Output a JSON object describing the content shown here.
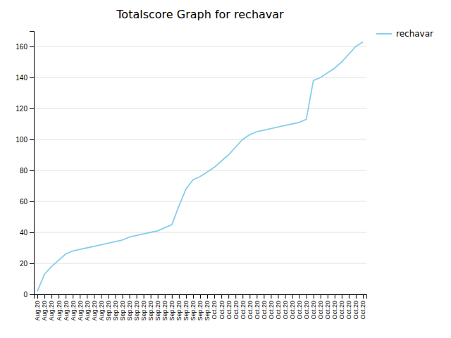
{
  "chart_data": {
    "type": "line",
    "title": "Totalscore Graph for rechavar",
    "categories": [
      "Aug.20",
      "Aug.20",
      "Aug.20",
      "Aug.20",
      "Aug.20",
      "Aug.20",
      "Aug.20",
      "Aug.20",
      "Aug.20",
      "Aug.20",
      "Sep.20",
      "Sep.20",
      "Sep.20",
      "Sep.20",
      "Sep.20",
      "Sep.20",
      "Sep.20",
      "Sep.20",
      "Sep.20",
      "Sep.20",
      "Sep.20",
      "Sep.20",
      "Sep.20",
      "Sep.20",
      "Sep.20",
      "Oct.20",
      "Oct.20",
      "Oct.20",
      "Oct.20",
      "Oct.20",
      "Oct.20",
      "Oct.20",
      "Oct.20",
      "Oct.20",
      "Oct.20",
      "Oct.20",
      "Oct.20",
      "Oct.20",
      "Oct.20",
      "Oct.20",
      "Oct.20",
      "Oct.20",
      "Oct.20",
      "Oct.20",
      "Oct.20",
      "Oct.20",
      "Oct.20"
    ],
    "series": [
      {
        "name": "rechavar",
        "color": "#87CEEB",
        "values": [
          2,
          13,
          18,
          22,
          26,
          28,
          29,
          30,
          31,
          32,
          33,
          34,
          35,
          37,
          38,
          39,
          40,
          41,
          43,
          45,
          57,
          68,
          74,
          76,
          79,
          82,
          86,
          90,
          95,
          100,
          103,
          105,
          106,
          107,
          108,
          109,
          110,
          111,
          113,
          138,
          140,
          143,
          146,
          150,
          155,
          160,
          163
        ]
      }
    ],
    "ylim": [
      0,
      170
    ],
    "yticks": [
      0,
      20,
      40,
      60,
      80,
      100,
      120,
      140,
      160
    ],
    "grid": true,
    "legend": "right"
  }
}
